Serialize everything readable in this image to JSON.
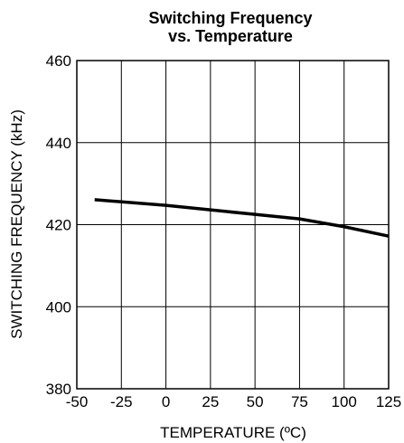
{
  "chart_data": {
    "type": "line",
    "title": [
      "Switching Frequency",
      "vs. Temperature"
    ],
    "x_label": "TEMPERATURE (ºC)",
    "y_label": "SWITCHING FREQUENCY (kHz)",
    "x": [
      -40,
      0,
      25,
      50,
      75,
      100,
      125
    ],
    "series": [
      {
        "name": "Switching Frequency",
        "color": "#000000",
        "values": [
          426.1,
          424.7,
          423.6,
          422.5,
          421.4,
          419.5,
          417.2
        ]
      }
    ],
    "xlim": [
      -50,
      125
    ],
    "xticks": [
      -50,
      -25,
      0,
      25,
      50,
      75,
      100,
      125
    ],
    "ylim": [
      380,
      460
    ],
    "yticks": [
      380,
      400,
      420,
      440,
      460
    ],
    "grid": true
  }
}
